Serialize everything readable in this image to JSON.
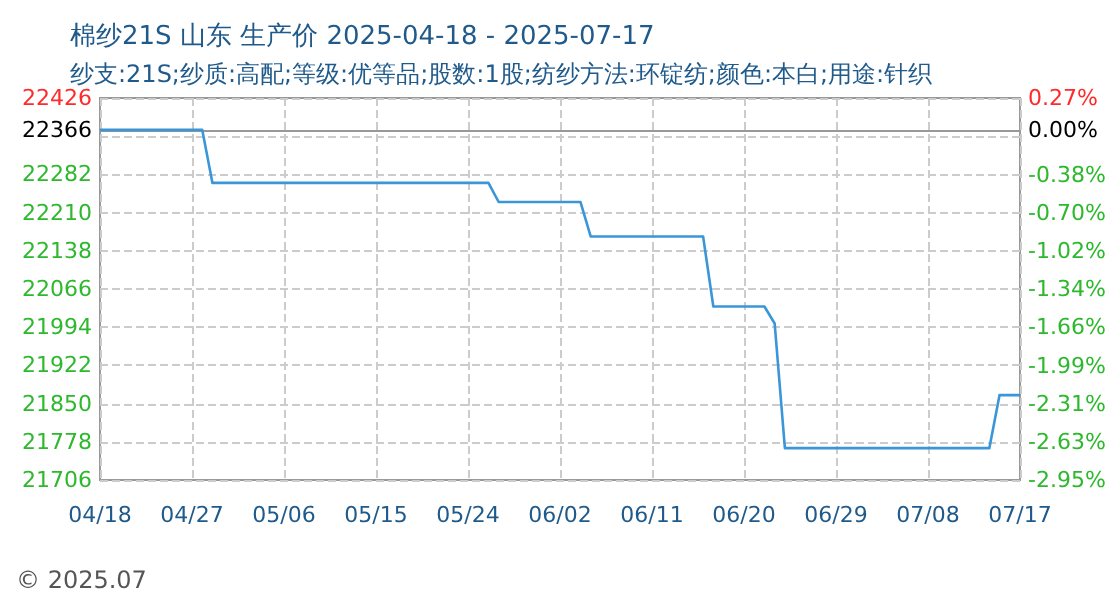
{
  "chart_data": {
    "type": "line",
    "title": "棉纱21S 山东 生产价 2025-04-18 - 2025-07-17",
    "subtitle": "纱支:21S;纱质:高配;等级:优等品;股数:1股;纺纱方法:环锭纺;颜色:本白;用途:针织",
    "x": [
      "2025-04-18",
      "2025-04-28",
      "2025-04-29",
      "2025-05-26",
      "2025-05-27",
      "2025-06-04",
      "2025-06-05",
      "2025-06-16",
      "2025-06-17",
      "2025-06-22",
      "2025-06-23",
      "2025-06-24",
      "2025-07-14",
      "2025-07-15",
      "2025-07-17"
    ],
    "series": [
      {
        "color": "#3a96d8",
        "values": [
          22366,
          22366,
          22266,
          22266,
          22230,
          22230,
          22165,
          22165,
          22033,
          22033,
          22001,
          21766,
          21766,
          21866,
          21866
        ]
      }
    ],
    "xlim": [
      "2025-04-18",
      "2025-07-17"
    ],
    "xticks": [
      {
        "value": "2025-04-18",
        "label": "04/18"
      },
      {
        "value": "2025-04-27",
        "label": "04/27"
      },
      {
        "value": "2025-05-06",
        "label": "05/06"
      },
      {
        "value": "2025-05-15",
        "label": "05/15"
      },
      {
        "value": "2025-05-24",
        "label": "05/24"
      },
      {
        "value": "2025-06-02",
        "label": "06/02"
      },
      {
        "value": "2025-06-11",
        "label": "06/11"
      },
      {
        "value": "2025-06-20",
        "label": "06/20"
      },
      {
        "value": "2025-06-29",
        "label": "06/29"
      },
      {
        "value": "2025-07-08",
        "label": "07/08"
      },
      {
        "value": "2025-07-17",
        "label": "07/17"
      }
    ],
    "ylim": [
      21706,
      22426
    ],
    "yticks": [
      21706,
      21778,
      21850,
      21922,
      21994,
      22066,
      22138,
      22210,
      22282,
      {
        "value": 22354,
        "label": null
      },
      22366,
      22426
    ],
    "y2lim": [
      -2.95,
      0.27
    ],
    "y2ticks": [
      {
        "value": -2.95,
        "label": "-2.95%"
      },
      {
        "value": -2.63,
        "label": "-2.63%"
      },
      {
        "value": -2.31,
        "label": "-2.31%"
      },
      {
        "value": -1.99,
        "label": "-1.99%"
      },
      {
        "value": -1.66,
        "label": "-1.66%"
      },
      {
        "value": -1.34,
        "label": "-1.34%"
      },
      {
        "value": -1.02,
        "label": "-1.02%"
      },
      {
        "value": -0.7,
        "label": "-0.70%"
      },
      {
        "value": -0.38,
        "label": "-0.38%"
      },
      {
        "value": 0,
        "label": "0.00%"
      },
      {
        "value": 0.27,
        "label": "0.27%"
      }
    ],
    "ref_lines": [
      {
        "axis": "y",
        "value": 22366,
        "color": "#999999"
      }
    ],
    "annotations": [
      "© 2025.07"
    ],
    "grid": true,
    "marker": "none",
    "line_style": "solid"
  }
}
